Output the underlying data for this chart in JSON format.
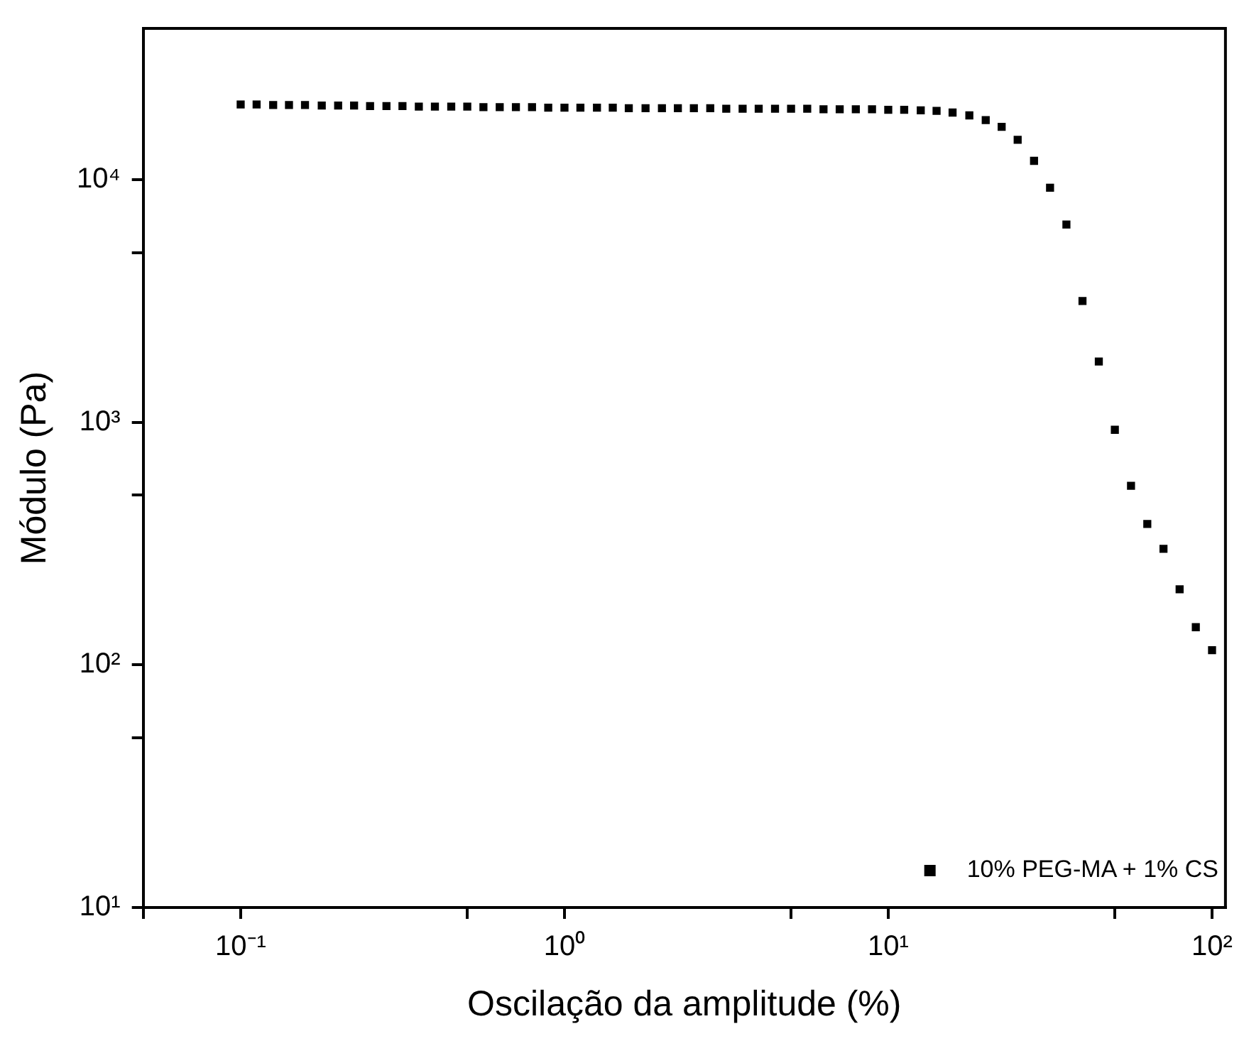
{
  "chart_data": {
    "type": "scatter",
    "xlabel": "Oscilação da amplitude (%)",
    "ylabel": "Módulo (Pa)",
    "log": "xy",
    "grid": false,
    "legend": "bottom right",
    "marker": "square",
    "xlim": [
      0.05,
      110
    ],
    "ylim": [
      10,
      42000
    ],
    "xticks": [
      {
        "value": 0.05,
        "label": null
      },
      {
        "value": 0.1,
        "label": "10⁻¹"
      },
      {
        "value": 0.5,
        "label": null
      },
      {
        "value": 1,
        "label": "10⁰"
      },
      {
        "value": 5,
        "label": null
      },
      {
        "value": 10,
        "label": "10¹"
      },
      {
        "value": 50,
        "label": null
      },
      {
        "value": 100,
        "label": "10²"
      }
    ],
    "yticks": [
      {
        "value": 10,
        "label": "10¹"
      },
      {
        "value": 50,
        "label": null
      },
      {
        "value": 100,
        "label": "10²"
      },
      {
        "value": 500,
        "label": null
      },
      {
        "value": 1000,
        "label": "10³"
      },
      {
        "value": 5000,
        "label": null
      },
      {
        "value": 10000,
        "label": "10⁴"
      }
    ],
    "x": [
      0.1,
      0.112,
      0.126,
      0.141,
      0.158,
      0.178,
      0.2,
      0.224,
      0.251,
      0.282,
      0.316,
      0.355,
      0.398,
      0.447,
      0.501,
      0.562,
      0.631,
      0.708,
      0.794,
      0.891,
      1,
      1.12,
      1.26,
      1.41,
      1.58,
      1.78,
      2,
      2.24,
      2.51,
      2.82,
      3.16,
      3.55,
      3.98,
      4.47,
      5.01,
      5.62,
      6.31,
      7.08,
      7.94,
      8.91,
      10,
      11.2,
      12.6,
      14.1,
      15.8,
      17.8,
      20,
      22.4,
      25.1,
      28.2,
      31.6,
      35.5,
      39.8,
      44.7,
      50.1,
      56.2,
      63.1,
      70.8,
      79.4,
      89.1,
      100
    ],
    "series": [
      {
        "name": "10% PEG-MA + 1% CS",
        "color": "#000000",
        "values": [
          20400,
          20400,
          20300,
          20300,
          20300,
          20200,
          20200,
          20200,
          20100,
          20100,
          20100,
          20000,
          20000,
          20000,
          20000,
          19900,
          19900,
          19900,
          19900,
          19800,
          19800,
          19800,
          19800,
          19800,
          19700,
          19700,
          19700,
          19700,
          19700,
          19700,
          19600,
          19600,
          19600,
          19600,
          19600,
          19600,
          19500,
          19500,
          19500,
          19500,
          19400,
          19400,
          19300,
          19200,
          18900,
          18400,
          17600,
          16500,
          14600,
          11950,
          9260,
          6530,
          3160,
          1780,
          931,
          547,
          381,
          301,
          205,
          143,
          115
        ]
      }
    ]
  }
}
